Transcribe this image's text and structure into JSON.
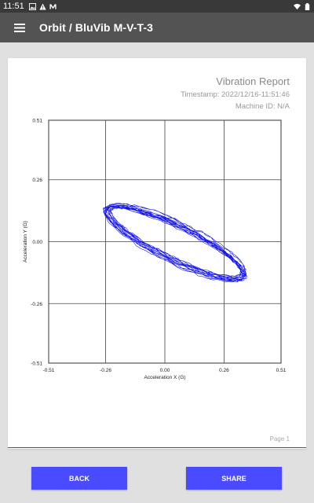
{
  "status_bar": {
    "time": "11:51",
    "left_icons": [
      "image-icon",
      "alert-icon",
      "mail-icon"
    ],
    "right_icons": [
      "wifi-icon",
      "battery-icon"
    ]
  },
  "app_bar": {
    "menu_icon": "hamburger-menu-icon",
    "title": "Orbit / BluVib M-V-T-3"
  },
  "report": {
    "title": "Vibration Report",
    "timestamp": "Timestamp: 2022/12/16-11:51:46",
    "machine_id": "Machine ID: N/A",
    "page": "Page 1"
  },
  "buttons": {
    "back": "BACK",
    "share": "SHARE"
  },
  "colors": {
    "status_bar": "#393939",
    "app_bar": "#535353",
    "button": "#4a4aff",
    "trace": "#1515ee"
  },
  "chart_data": {
    "type": "scatter",
    "xlabel": "Acceleration X (G)",
    "ylabel": "Acceleration Y (G)",
    "xlim": [
      -0.51,
      0.51
    ],
    "ylim": [
      -0.51,
      0.51
    ],
    "xticks": [
      -0.51,
      -0.26,
      0.0,
      0.26,
      0.51
    ],
    "yticks": [
      0.51,
      0.26,
      0.0,
      -0.26,
      -0.51
    ],
    "xtick_labels": [
      "-0.51",
      "-0.26",
      "0.00",
      "0.26",
      "0.51"
    ],
    "ytick_labels": [
      "0.51",
      "0.26",
      "0.00",
      "-0.26",
      "-0.51"
    ],
    "grid": true,
    "series": [
      {
        "style": "line",
        "orbit": {
          "center": [
            0.05,
            0.0
          ],
          "semi_major": 0.33,
          "semi_minor": 0.07,
          "tilt_deg": -25,
          "loops": 14
        }
      }
    ]
  }
}
